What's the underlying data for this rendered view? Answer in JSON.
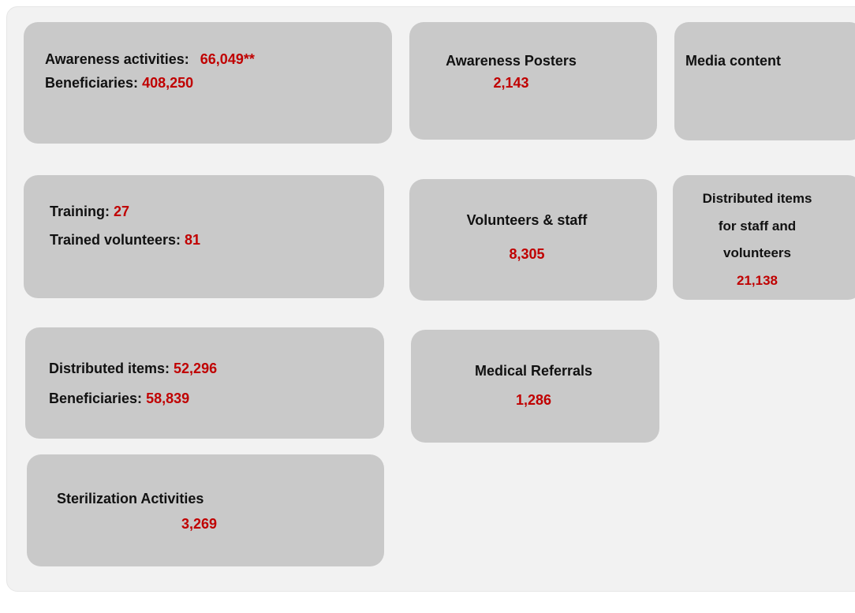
{
  "cards": [
    {
      "lines": [
        {
          "label": "Awareness activities:",
          "value": "66,049**"
        },
        {
          "label": "Beneficiaries:",
          "value": "408,250"
        }
      ]
    },
    {
      "lines": [
        {
          "label": "Awareness Posters"
        },
        {
          "value": "2,143"
        }
      ]
    },
    {
      "lines": [
        {
          "label": "Media content"
        }
      ]
    },
    {
      "lines": [
        {
          "label": "Training:",
          "value": "27"
        },
        {
          "label": "Trained volunteers:",
          "value": "81"
        }
      ]
    },
    {
      "lines": [
        {
          "label": "Volunteers & staff"
        },
        {
          "value": "8,305"
        }
      ]
    },
    {
      "lines": [
        {
          "label": "Distributed items"
        },
        {
          "label": "for staff and"
        },
        {
          "label": "volunteers"
        },
        {
          "value": "21,138"
        }
      ]
    },
    {
      "lines": [
        {
          "label": "Distributed items:",
          "value": "52,296"
        },
        {
          "label": "Beneficiaries:",
          "value": "58,839"
        }
      ]
    },
    {
      "lines": [
        {
          "label": "Medical Referrals"
        },
        {
          "value": "1,286"
        }
      ]
    },
    {
      "lines": [
        {
          "label": "Sterilization Activities"
        },
        {
          "value": "3,269"
        }
      ]
    }
  ]
}
